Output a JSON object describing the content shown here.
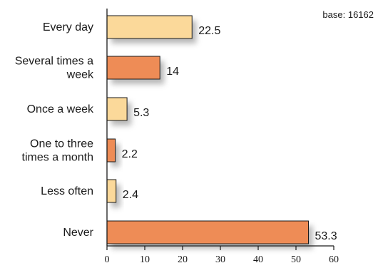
{
  "chart_data": {
    "type": "bar",
    "orientation": "horizontal",
    "categories": [
      [
        "Every day"
      ],
      [
        "Several times a",
        "week"
      ],
      [
        "Once a week"
      ],
      [
        "One to three",
        "times a month"
      ],
      [
        "Less often"
      ],
      [
        "Never"
      ]
    ],
    "values": [
      22.5,
      14,
      5.3,
      2.2,
      2.4,
      53.3
    ],
    "value_labels": [
      "22.5",
      "14",
      "5.3",
      "2.2",
      "2.4",
      "53.3"
    ],
    "xlim": [
      0,
      60
    ],
    "xticks": [
      0,
      10,
      20,
      30,
      40,
      50,
      60
    ],
    "grid": false,
    "annotation": "base: 16162",
    "colors": {
      "light": "#fbd99a",
      "dark": "#ee8c56",
      "stroke": "#1a1a1a",
      "shadow": "#9a9a9a"
    },
    "bar_color_pattern": [
      "light",
      "dark",
      "light",
      "dark",
      "light",
      "dark"
    ]
  }
}
